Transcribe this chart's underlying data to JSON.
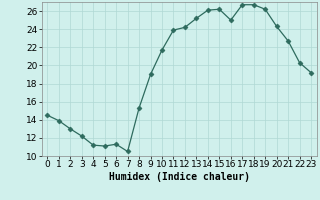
{
  "x": [
    0,
    1,
    2,
    3,
    4,
    5,
    6,
    7,
    8,
    9,
    10,
    11,
    12,
    13,
    14,
    15,
    16,
    17,
    18,
    19,
    20,
    21,
    22,
    23
  ],
  "y": [
    14.5,
    13.9,
    13.0,
    12.2,
    11.2,
    11.1,
    11.3,
    10.5,
    15.3,
    19.0,
    21.7,
    23.9,
    24.2,
    25.2,
    26.1,
    26.2,
    25.0,
    26.7,
    26.7,
    26.2,
    24.3,
    22.7,
    20.3,
    19.2
  ],
  "line_color": "#2e6b5e",
  "marker": "D",
  "marker_size": 2.5,
  "bg_color": "#d0f0ec",
  "grid_color": "#b0d8d4",
  "xlabel": "Humidex (Indice chaleur)",
  "xlim": [
    -0.5,
    23.5
  ],
  "ylim": [
    10,
    27
  ],
  "yticks": [
    10,
    12,
    14,
    16,
    18,
    20,
    22,
    24,
    26
  ],
  "xticks": [
    0,
    1,
    2,
    3,
    4,
    5,
    6,
    7,
    8,
    9,
    10,
    11,
    12,
    13,
    14,
    15,
    16,
    17,
    18,
    19,
    20,
    21,
    22,
    23
  ],
  "xlabel_fontsize": 7,
  "tick_fontsize": 6.5
}
